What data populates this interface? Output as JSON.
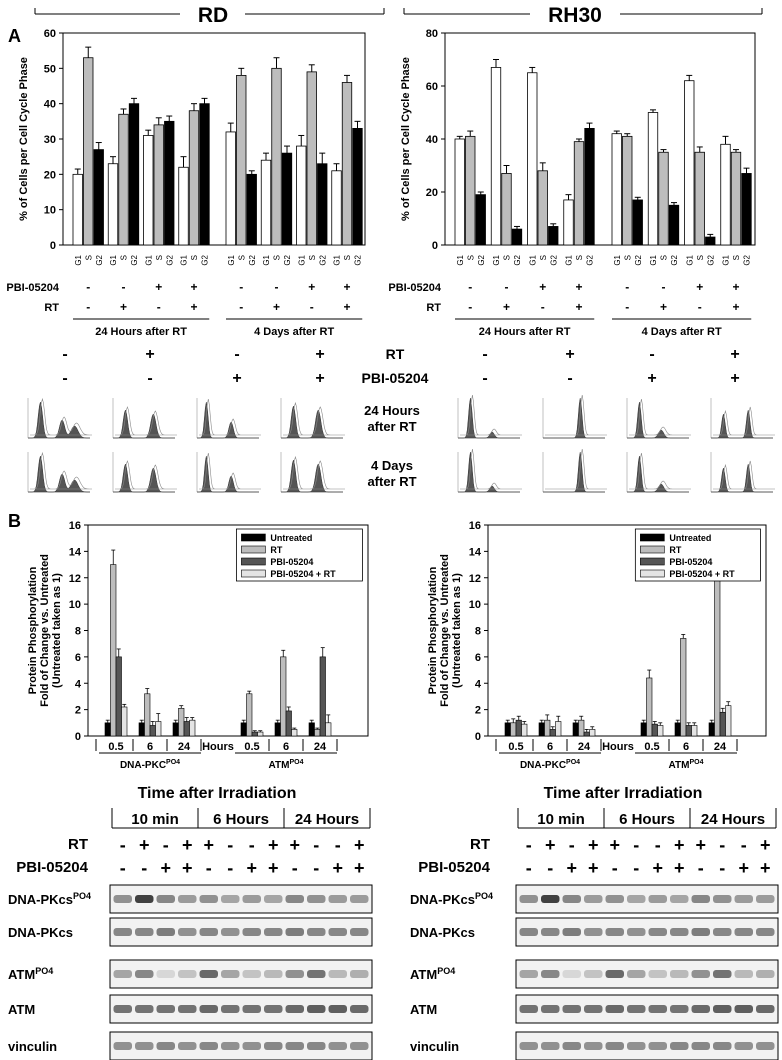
{
  "panel_a": {
    "label": "A",
    "row1_label": "24 Hours\nafter RT",
    "row2_label": "4 Days\nafter RT",
    "rt_label": "RT",
    "pbi_label": "PBI-05204",
    "flow_header": {
      "rt_signs": [
        "-",
        "+",
        "-",
        "+"
      ],
      "pbi_signs": [
        "-",
        "-",
        "+",
        "+"
      ]
    }
  },
  "panel_b": {
    "label": "B",
    "time_title": "Time after Irradiation",
    "blot_rt_label": "RT",
    "blot_pbi_label": "PBI-05204",
    "time_groups": [
      "10 min",
      "6 Hours",
      "24 Hours"
    ],
    "rt_signs": [
      "-",
      "+",
      "-",
      "+",
      "+",
      "-",
      "-",
      "+",
      "+",
      "-",
      "-",
      "+"
    ],
    "pbi_signs": [
      "-",
      "-",
      "+",
      "+",
      "-",
      "-",
      "+",
      "+",
      "-",
      "-",
      "+",
      "+"
    ],
    "blot_rows": [
      {
        "name": "DNA-PKcs",
        "sup": "PO4"
      },
      {
        "name": "DNA-PKcs",
        "sup": ""
      },
      {
        "name": "ATM",
        "sup": "PO4"
      },
      {
        "name": "ATM",
        "sup": ""
      },
      {
        "name": "vinculin",
        "sup": ""
      }
    ]
  },
  "chart_data": [
    {
      "type": "bar",
      "title": "RD",
      "ylabel": "% of Cells per Cell Cycle Phase",
      "ylim": [
        0,
        60
      ],
      "yticks": [
        0,
        10,
        20,
        30,
        40,
        50,
        60
      ],
      "phase_labels": [
        "G1",
        "S",
        "G2"
      ],
      "groups": [
        {
          "pbi": "-",
          "rt": "-",
          "values": [
            20,
            53,
            27
          ]
        },
        {
          "pbi": "-",
          "rt": "+",
          "values": [
            23,
            37,
            40
          ]
        },
        {
          "pbi": "+",
          "rt": "-",
          "values": [
            31,
            34,
            35
          ]
        },
        {
          "pbi": "+",
          "rt": "+",
          "values": [
            22,
            38,
            40
          ]
        },
        {
          "pbi": "-",
          "rt": "-",
          "values": [
            32,
            48,
            20
          ]
        },
        {
          "pbi": "-",
          "rt": "+",
          "values": [
            24,
            50,
            26
          ]
        },
        {
          "pbi": "+",
          "rt": "-",
          "values": [
            28,
            49,
            23
          ]
        },
        {
          "pbi": "+",
          "rt": "+",
          "values": [
            21,
            46,
            33
          ]
        }
      ],
      "errors": [
        [
          1.5,
          3,
          2
        ],
        [
          2,
          1.5,
          1.5
        ],
        [
          1.5,
          2,
          1.5
        ],
        [
          3,
          2,
          1.5
        ],
        [
          2.5,
          2,
          1
        ],
        [
          2,
          3,
          2
        ],
        [
          3,
          2,
          3
        ],
        [
          2,
          2,
          2
        ]
      ],
      "timepoint_labels": [
        "24 Hours after RT",
        "4 Days after RT"
      ],
      "pbi_label": "PBI-05204",
      "rt_label": "RT"
    },
    {
      "type": "bar",
      "title": "RH30",
      "ylabel": "% of Cells per Cell Cycle Phase",
      "ylim": [
        0,
        80
      ],
      "yticks": [
        0,
        20,
        40,
        60,
        80
      ],
      "phase_labels": [
        "G1",
        "S",
        "G2"
      ],
      "groups": [
        {
          "pbi": "-",
          "rt": "-",
          "values": [
            40,
            41,
            19
          ]
        },
        {
          "pbi": "-",
          "rt": "+",
          "values": [
            67,
            27,
            6
          ]
        },
        {
          "pbi": "+",
          "rt": "-",
          "values": [
            65,
            28,
            7
          ]
        },
        {
          "pbi": "+",
          "rt": "+",
          "values": [
            17,
            39,
            44
          ]
        },
        {
          "pbi": "-",
          "rt": "-",
          "values": [
            42,
            41,
            17
          ]
        },
        {
          "pbi": "-",
          "rt": "+",
          "values": [
            50,
            35,
            15
          ]
        },
        {
          "pbi": "+",
          "rt": "-",
          "values": [
            62,
            35,
            3
          ]
        },
        {
          "pbi": "+",
          "rt": "+",
          "values": [
            38,
            35,
            27
          ]
        }
      ],
      "errors": [
        [
          1,
          2,
          1
        ],
        [
          3,
          3,
          1
        ],
        [
          2,
          3,
          1
        ],
        [
          2,
          1,
          2
        ],
        [
          1,
          1,
          1
        ],
        [
          1,
          1,
          1
        ],
        [
          2,
          2,
          1
        ],
        [
          3,
          1,
          2
        ]
      ],
      "timepoint_labels": [
        "24 Hours after RT",
        "4 Days after RT"
      ],
      "pbi_label": "PBI-05204",
      "rt_label": "RT"
    },
    {
      "type": "bar",
      "title": "",
      "ylabel": "Protein Phosphorylation\nFold of Change vs. Untreated\n(Untreated taken as 1)",
      "ylim": [
        0,
        16
      ],
      "yticks": [
        0,
        2,
        4,
        6,
        8,
        10,
        12,
        14,
        16
      ],
      "series_names": [
        "Untreated",
        "RT",
        "PBI-05204",
        "PBI-05204 + RT"
      ],
      "x": [
        "0.5",
        "6",
        "24",
        "0.5",
        "6",
        "24"
      ],
      "hours_label": "Hours",
      "group_labels": [
        {
          "name": "DNA-PKC",
          "sup": "PO4"
        },
        {
          "name": "ATM",
          "sup": "PO4"
        }
      ],
      "series": [
        {
          "name": "Untreated",
          "values": [
            1,
            1,
            1,
            1,
            1,
            1
          ]
        },
        {
          "name": "RT",
          "values": [
            13,
            3.2,
            2.1,
            3.2,
            6,
            0.5
          ]
        },
        {
          "name": "PBI-05204",
          "values": [
            6,
            0.8,
            1.1,
            0.3,
            1.9,
            6
          ]
        },
        {
          "name": "PBI-05204 + RT",
          "values": [
            2.2,
            1.1,
            1.2,
            0.3,
            0.5,
            1
          ]
        }
      ],
      "errors": [
        [
          0.2,
          0.2,
          0.2,
          0.2,
          0.2,
          0.2
        ],
        [
          1.1,
          0.4,
          0.2,
          0.2,
          0.5,
          0.1
        ],
        [
          0.6,
          0.3,
          0.3,
          0.1,
          0.3,
          0.7
        ],
        [
          0.2,
          0.6,
          0.2,
          0.1,
          0.1,
          0.6
        ]
      ]
    },
    {
      "type": "bar",
      "title": "",
      "ylabel": "Protein Phosphorylation\nFold of Change vs. Untreated\n(Untreated taken as 1)",
      "ylim": [
        0,
        16
      ],
      "yticks": [
        0,
        2,
        4,
        6,
        8,
        10,
        12,
        14,
        16
      ],
      "series_names": [
        "Untreated",
        "RT",
        "PBI-05204",
        "PBI-05204 + RT"
      ],
      "x": [
        "0.5",
        "6",
        "24",
        "0.5",
        "6",
        "24"
      ],
      "hours_label": "Hours",
      "group_labels": [
        {
          "name": "DNA-PKC",
          "sup": "PO4"
        },
        {
          "name": "ATM",
          "sup": "PO4"
        }
      ],
      "series": [
        {
          "name": "Untreated",
          "values": [
            1,
            1,
            1,
            1,
            1,
            1
          ]
        },
        {
          "name": "RT",
          "values": [
            1,
            1.2,
            1.2,
            4.4,
            7.4,
            13
          ]
        },
        {
          "name": "PBI-05204",
          "values": [
            1.2,
            0.5,
            0.3,
            0.9,
            0.8,
            1.8
          ]
        },
        {
          "name": "PBI-05204 + RT",
          "values": [
            0.9,
            1.1,
            0.5,
            0.8,
            0.8,
            2.3
          ]
        }
      ],
      "errors": [
        [
          0.2,
          0.2,
          0.2,
          0.2,
          0.2,
          0.2
        ],
        [
          0.3,
          0.4,
          0.3,
          0.6,
          0.3,
          1.6
        ],
        [
          0.3,
          0.2,
          0.2,
          0.2,
          0.2,
          0.3
        ],
        [
          0.2,
          0.4,
          0.2,
          0.2,
          0.2,
          0.3
        ]
      ]
    }
  ]
}
